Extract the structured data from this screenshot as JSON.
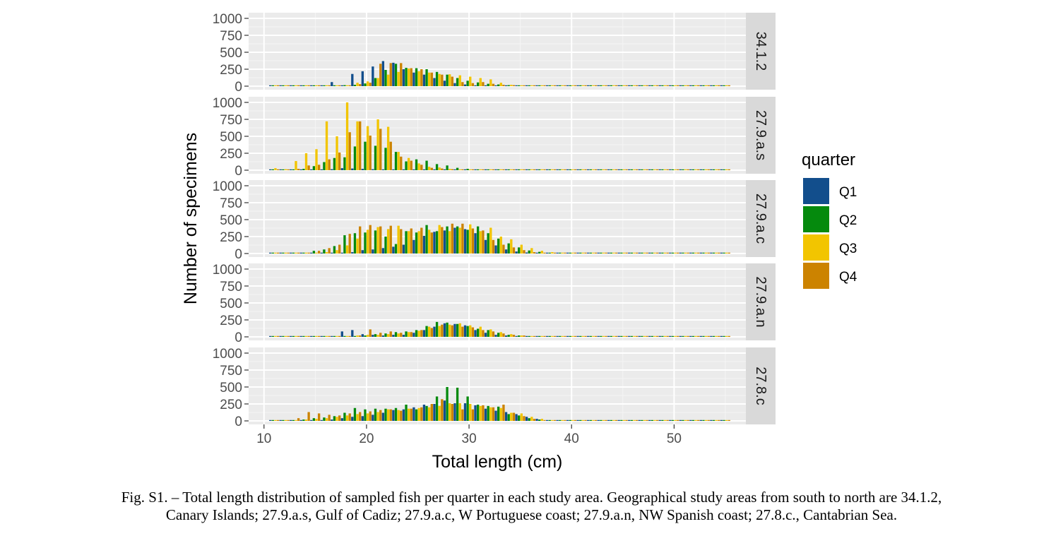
{
  "chart_data": {
    "type": "bar",
    "xlabel": "Total length (cm)",
    "ylabel": "Number of specimens",
    "xlim": [
      8.5,
      57
    ],
    "ylim": [
      0,
      1000
    ],
    "xticks": [
      10,
      20,
      30,
      40,
      50
    ],
    "yticks": [
      0,
      250,
      500,
      750,
      1000
    ],
    "legend": {
      "title": "quarter",
      "position": "right"
    },
    "colors": {
      "Q1": "#124E8C",
      "Q2": "#058A0D",
      "Q3": "#F2C500",
      "Q4": "#CC8300"
    },
    "x": [
      11,
      12,
      13,
      14,
      15,
      16,
      17,
      18,
      19,
      20,
      21,
      22,
      23,
      24,
      25,
      26,
      27,
      28,
      29,
      30,
      31,
      32,
      33,
      34,
      35,
      36,
      37,
      38,
      39,
      40,
      41,
      42,
      43,
      44,
      45,
      46,
      47,
      48,
      49,
      50,
      51,
      52,
      53,
      54,
      55
    ],
    "panels": [
      {
        "label": "34.1.2",
        "series": [
          {
            "name": "Q1",
            "values": [
              0,
              0,
              0,
              0,
              0,
              5,
              60,
              5,
              180,
              220,
              290,
              370,
              345,
              250,
              200,
              170,
              120,
              80,
              45,
              25,
              12,
              8,
              5,
              3,
              2,
              2,
              1,
              1,
              0,
              0,
              0,
              0,
              0,
              0,
              0,
              0,
              0,
              0,
              0,
              0,
              0,
              0,
              0,
              0,
              0
            ]
          },
          {
            "name": "Q2",
            "values": [
              0,
              0,
              0,
              0,
              0,
              0,
              5,
              15,
              20,
              40,
              120,
              240,
              330,
              270,
              265,
              250,
              210,
              170,
              120,
              80,
              55,
              35,
              25,
              15,
              10,
              8,
              5,
              3,
              2,
              1,
              1,
              0,
              0,
              0,
              0,
              0,
              0,
              0,
              0,
              0,
              0,
              0,
              0,
              0,
              0
            ]
          },
          {
            "name": "Q3",
            "values": [
              0,
              0,
              0,
              0,
              0,
              0,
              0,
              5,
              50,
              70,
              120,
              170,
              210,
              260,
              220,
              200,
              180,
              175,
              160,
              140,
              120,
              100,
              50,
              20,
              10,
              5,
              3,
              2,
              1,
              1,
              0,
              0,
              0,
              0,
              0,
              0,
              0,
              0,
              0,
              0,
              0,
              0,
              0,
              0,
              0
            ]
          },
          {
            "name": "Q4",
            "values": [
              0,
              0,
              0,
              0,
              0,
              0,
              5,
              10,
              30,
              50,
              330,
              340,
              340,
              265,
              250,
              200,
              170,
              140,
              60,
              45,
              60,
              35,
              20,
              15,
              10,
              5,
              3,
              2,
              1,
              0,
              0,
              0,
              0,
              0,
              0,
              0,
              0,
              0,
              0,
              0,
              0,
              0,
              0,
              0,
              0
            ]
          }
        ]
      },
      {
        "label": "27.9.a.s",
        "series": [
          {
            "name": "Q1",
            "values": [
              0,
              0,
              0,
              0,
              0,
              5,
              15,
              30,
              25,
              20,
              15,
              10,
              8,
              5,
              3,
              2,
              1,
              1,
              0,
              0,
              0,
              0,
              0,
              0,
              0,
              0,
              0,
              0,
              0,
              0,
              0,
              0,
              0,
              0,
              0,
              0,
              0,
              0,
              0,
              0,
              0,
              0,
              0,
              0,
              0
            ]
          },
          {
            "name": "Q2",
            "values": [
              0,
              0,
              0,
              20,
              60,
              120,
              180,
              190,
              350,
              420,
              360,
              330,
              270,
              130,
              160,
              140,
              90,
              70,
              35,
              20,
              10,
              5,
              3,
              0,
              0,
              0,
              0,
              0,
              0,
              0,
              0,
              0,
              0,
              0,
              0,
              0,
              0,
              0,
              0,
              0,
              0,
              0,
              0,
              0,
              0
            ]
          },
          {
            "name": "Q3",
            "values": [
              30,
              15,
              135,
              250,
              310,
              720,
              500,
              1000,
              720,
              650,
              750,
              640,
              270,
              180,
              100,
              50,
              40,
              20,
              10,
              5,
              3,
              2,
              0,
              0,
              0,
              0,
              0,
              0,
              0,
              0,
              0,
              0,
              0,
              0,
              0,
              0,
              0,
              0,
              0,
              0,
              0,
              0,
              0,
              0,
              0
            ]
          },
          {
            "name": "Q4",
            "values": [
              10,
              5,
              20,
              70,
              80,
              160,
              260,
              560,
              720,
              510,
              610,
              420,
              200,
              140,
              80,
              35,
              25,
              15,
              10,
              5,
              3,
              2,
              0,
              0,
              0,
              0,
              0,
              0,
              0,
              0,
              0,
              0,
              0,
              0,
              0,
              0,
              0,
              0,
              0,
              0,
              0,
              0,
              0,
              0,
              0
            ]
          }
        ]
      },
      {
        "label": "27.9.a.c",
        "series": [
          {
            "name": "Q1",
            "values": [
              0,
              0,
              0,
              0,
              0,
              0,
              5,
              10,
              20,
              50,
              60,
              80,
              100,
              130,
              200,
              260,
              320,
              340,
              380,
              360,
              300,
              200,
              120,
              60,
              30,
              15,
              5,
              2,
              0,
              0,
              0,
              0,
              0,
              0,
              0,
              0,
              0,
              0,
              0,
              0,
              0,
              0,
              0,
              0,
              0
            ]
          },
          {
            "name": "Q2",
            "values": [
              0,
              0,
              0,
              0,
              40,
              60,
              110,
              270,
              300,
              310,
              340,
              250,
              140,
              330,
              310,
              420,
              330,
              400,
              400,
              350,
              400,
              300,
              220,
              150,
              90,
              45,
              25,
              10,
              5,
              0,
              0,
              0,
              0,
              0,
              0,
              0,
              0,
              0,
              0,
              0,
              0,
              0,
              0,
              0,
              0
            ]
          },
          {
            "name": "Q3",
            "values": [
              0,
              0,
              0,
              0,
              10,
              20,
              50,
              120,
              220,
              350,
              390,
              360,
              410,
              330,
              330,
              350,
              420,
              330,
              380,
              430,
              330,
              380,
              250,
              210,
              130,
              80,
              40,
              20,
              5,
              0,
              0,
              0,
              0,
              0,
              0,
              0,
              0,
              0,
              0,
              0,
              0,
              0,
              0,
              0,
              0
            ]
          },
          {
            "name": "Q4",
            "values": [
              5,
              5,
              5,
              10,
              40,
              80,
              130,
              290,
              400,
              420,
              400,
              410,
              360,
              370,
              380,
              310,
              390,
              440,
              440,
              370,
              340,
              200,
              130,
              90,
              50,
              20,
              10,
              5,
              0,
              0,
              0,
              0,
              0,
              0,
              0,
              0,
              0,
              0,
              0,
              0,
              0,
              0,
              0,
              0,
              0
            ]
          }
        ]
      },
      {
        "label": "27.9.a.n",
        "series": [
          {
            "name": "Q1",
            "values": [
              0,
              0,
              0,
              0,
              0,
              0,
              5,
              80,
              100,
              40,
              30,
              20,
              30,
              30,
              60,
              100,
              150,
              200,
              190,
              170,
              100,
              60,
              30,
              20,
              10,
              5,
              2,
              0,
              0,
              0,
              0,
              0,
              0,
              0,
              0,
              0,
              0,
              0,
              0,
              0,
              0,
              0,
              0,
              0,
              0
            ]
          },
          {
            "name": "Q2",
            "values": [
              0,
              0,
              0,
              0,
              0,
              0,
              0,
              0,
              10,
              20,
              40,
              50,
              70,
              80,
              100,
              160,
              220,
              210,
              190,
              160,
              120,
              100,
              60,
              30,
              20,
              10,
              5,
              2,
              0,
              0,
              0,
              0,
              0,
              0,
              0,
              0,
              0,
              0,
              0,
              0,
              0,
              0,
              0,
              0,
              0
            ]
          },
          {
            "name": "Q3",
            "values": [
              0,
              0,
              0,
              0,
              0,
              0,
              0,
              10,
              20,
              30,
              30,
              40,
              50,
              70,
              90,
              150,
              160,
              180,
              200,
              170,
              150,
              110,
              70,
              40,
              20,
              10,
              5,
              2,
              0,
              0,
              0,
              0,
              0,
              0,
              0,
              0,
              0,
              0,
              0,
              0,
              0,
              0,
              0,
              0,
              0
            ]
          },
          {
            "name": "Q4",
            "values": [
              0,
              0,
              0,
              0,
              0,
              0,
              0,
              5,
              20,
              110,
              60,
              80,
              60,
              70,
              100,
              130,
              180,
              170,
              150,
              140,
              100,
              80,
              50,
              30,
              20,
              10,
              5,
              0,
              0,
              0,
              0,
              0,
              0,
              0,
              0,
              0,
              0,
              0,
              0,
              0,
              0,
              0,
              0,
              0,
              0
            ]
          }
        ]
      },
      {
        "label": "27.8.c",
        "series": [
          {
            "name": "Q1",
            "values": [
              0,
              0,
              0,
              0,
              0,
              10,
              20,
              40,
              60,
              70,
              90,
              120,
              160,
              170,
              200,
              240,
              250,
              300,
              260,
              260,
              230,
              180,
              150,
              130,
              100,
              60,
              30,
              10,
              5,
              0,
              0,
              0,
              0,
              0,
              0,
              0,
              0,
              0,
              0,
              0,
              0,
              0,
              0,
              0,
              0
            ]
          },
          {
            "name": "Q2",
            "values": [
              5,
              5,
              10,
              20,
              40,
              50,
              70,
              120,
              190,
              170,
              180,
              180,
              190,
              240,
              170,
              220,
              360,
              500,
              490,
              360,
              240,
              220,
              210,
              100,
              80,
              40,
              20,
              10,
              5,
              0,
              0,
              0,
              0,
              0,
              0,
              0,
              0,
              0,
              0,
              0,
              0,
              0,
              0,
              0,
              0
            ]
          },
          {
            "name": "Q3",
            "values": [
              0,
              0,
              5,
              20,
              30,
              40,
              60,
              80,
              100,
              110,
              130,
              170,
              160,
              180,
              190,
              200,
              220,
              260,
              260,
              250,
              220,
              200,
              190,
              120,
              110,
              60,
              30,
              10,
              5,
              0,
              0,
              0,
              0,
              0,
              0,
              0,
              0,
              0,
              0,
              0,
              0,
              0,
              0,
              0,
              0
            ]
          },
          {
            "name": "Q4",
            "values": [
              10,
              10,
              40,
              130,
              110,
              90,
              80,
              110,
              130,
              140,
              160,
              170,
              150,
              180,
              200,
              250,
              320,
              250,
              170,
              170,
              230,
              200,
              240,
              120,
              70,
              30,
              10,
              5,
              0,
              0,
              0,
              0,
              0,
              0,
              0,
              0,
              0,
              0,
              0,
              0,
              0,
              0,
              0,
              0,
              0
            ]
          }
        ]
      }
    ]
  },
  "caption": {
    "line1": "Fig. S1. – Total length distribution of sampled fish per quarter in each study area. Geographical study areas from south to north are 34.1.2,",
    "line2": "Canary Islands; 27.9.a.s, Gulf of Cadiz; 27.9.a.c, W Portuguese coast; 27.9.a.n, NW Spanish coast; 27.8.c., Cantabrian Sea."
  }
}
